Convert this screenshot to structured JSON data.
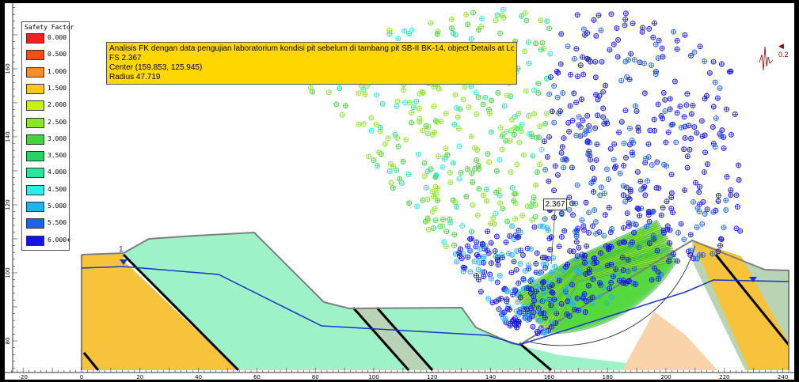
{
  "legend": {
    "title": "Safety Factor",
    "items": [
      {
        "label": "0.000",
        "color": "#ff1e1e"
      },
      {
        "label": "0.500",
        "color": "#ff4b14"
      },
      {
        "label": "1.000",
        "color": "#ff8c1e"
      },
      {
        "label": "1.500",
        "color": "#ffc81e"
      },
      {
        "label": "2.000",
        "color": "#c8f014"
      },
      {
        "label": "2.500",
        "color": "#8ce628"
      },
      {
        "label": "3.000",
        "color": "#46d23c"
      },
      {
        "label": "3.500",
        "color": "#28d264"
      },
      {
        "label": "4.000",
        "color": "#28e6a0"
      },
      {
        "label": "4.500",
        "color": "#28f0e6"
      },
      {
        "label": "5.000",
        "color": "#1eb4f0"
      },
      {
        "label": "5.500",
        "color": "#1e64e6"
      },
      {
        "label": "6.000+",
        "color": "#1414e6"
      }
    ]
  },
  "info": {
    "line1": "Analisis FK dengan data pengujian laboratorium kondisi pit sebelum di tambang pit SB-II BK-14, object Details at Location",
    "line2": "FS 2.367",
    "line3": "Center (159.853, 125.945)",
    "line4": "Radius 47.719"
  },
  "critical": {
    "fs_label": "2.367",
    "center": [
      159.853,
      125.945
    ],
    "radius": 47.719
  },
  "seismic": {
    "label": "0.2"
  },
  "water_table": {
    "label": "1"
  },
  "axes": {
    "x_ticks": [
      "-20",
      "0",
      "20",
      "40",
      "60",
      "80",
      "100",
      "120",
      "140",
      "160",
      "180",
      "200",
      "220",
      "240"
    ],
    "y_ticks": [
      "80",
      "100",
      "120",
      "140",
      "160"
    ]
  },
  "colors": {
    "material_orange": "#f7c33a",
    "material_mint": "#9df2c8",
    "material_grey": "#b9d3b5",
    "material_peach": "#f9d3aa",
    "water": "#1a33cc",
    "surface": "#7f7f7f",
    "info_bg": "#ffd700"
  }
}
